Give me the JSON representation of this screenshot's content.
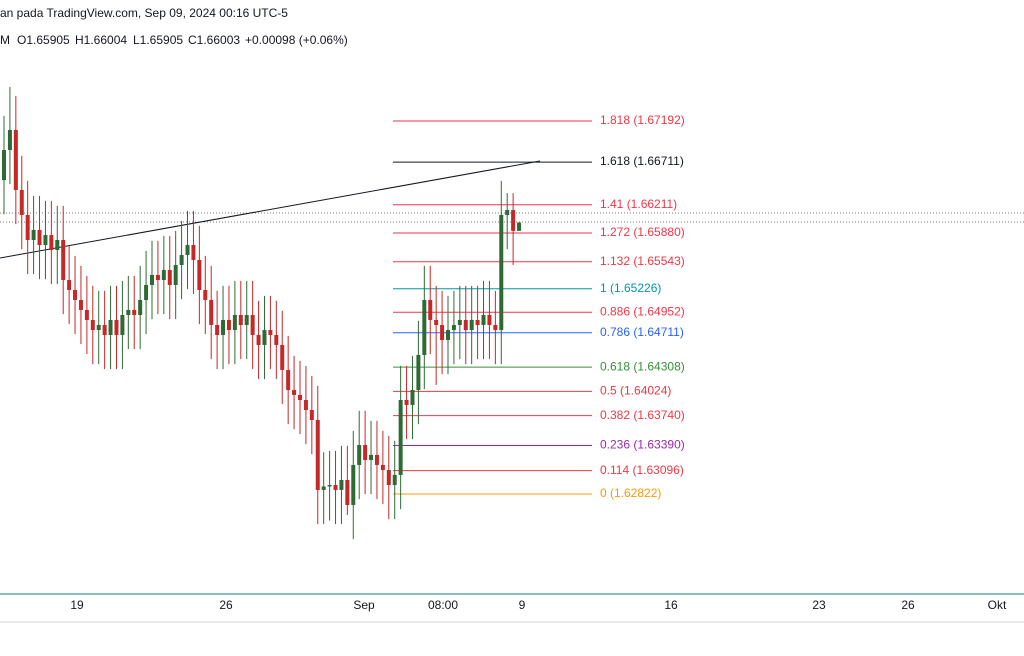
{
  "chart_data": {
    "type": "candlestick",
    "title": "an pada TradingView.com, Sep 09, 2024 00:16 UTC-5",
    "legend": [
      "M",
      "O1.65905",
      "H1.66004",
      "L1.65905",
      "C1.66003",
      "+0.00098 (+0.06%)"
    ],
    "ylim": [
      1.6165,
      1.6861
    ],
    "up_color": "#2e6b34",
    "down_color": "#c62828",
    "open": [
      1.665,
      1.66852,
      1.67087,
      1.66384,
      1.66091,
      1.65798,
      1.65915,
      1.65739,
      1.65856,
      1.65681,
      1.65798,
      1.65329,
      1.65212,
      1.65095,
      1.64978,
      1.64861,
      1.64743,
      1.64802,
      1.64685,
      1.64861,
      1.64685,
      1.64919,
      1.64978,
      1.64919,
      1.65095,
      1.65271,
      1.65388,
      1.65329,
      1.65446,
      1.65271,
      1.65505,
      1.65622,
      1.65739,
      1.65564,
      1.65212,
      1.65095,
      1.64802,
      1.64685,
      1.64861,
      1.64743,
      1.64919,
      1.64802,
      1.64919,
      1.64685,
      1.64568,
      1.64743,
      1.64685,
      1.64568,
      1.64275,
      1.6404,
      1.63982,
      1.63923,
      1.63806,
      1.63689,
      1.62869,
      1.6291,
      1.62927,
      1.62869,
      1.62986,
      1.62693,
      1.63162,
      1.63396,
      1.6322,
      1.63279,
      1.63162,
      1.63103,
      1.62927,
      1.63045,
      1.63923,
      1.63865,
      1.6404,
      1.64451,
      1.65095,
      1.64861,
      1.64802,
      1.64626,
      1.64743,
      1.64802,
      1.64861,
      1.64743,
      1.64861,
      1.64802,
      1.64919,
      1.64802,
      1.64743,
      1.66091,
      1.66149,
      1.65905
    ],
    "high": [
      1.67252,
      1.6759,
      1.67487,
      1.66784,
      1.66491,
      1.66315,
      1.66315,
      1.66256,
      1.66256,
      1.66198,
      1.66198,
      1.65729,
      1.65612,
      1.65495,
      1.65378,
      1.65261,
      1.65202,
      1.65202,
      1.65261,
      1.65261,
      1.65319,
      1.65378,
      1.65378,
      1.65495,
      1.65671,
      1.65788,
      1.65788,
      1.65846,
      1.65846,
      1.65905,
      1.66022,
      1.66139,
      1.66139,
      1.65964,
      1.65612,
      1.65495,
      1.65202,
      1.65261,
      1.65261,
      1.65319,
      1.65319,
      1.65319,
      1.65319,
      1.65085,
      1.65143,
      1.65143,
      1.65085,
      1.64968,
      1.64675,
      1.6444,
      1.64382,
      1.64323,
      1.64206,
      1.64089,
      1.6331,
      1.63327,
      1.63327,
      1.63386,
      1.63386,
      1.63562,
      1.63796,
      1.63796,
      1.63679,
      1.63679,
      1.63562,
      1.63503,
      1.63445,
      1.64323,
      1.64323,
      1.6444,
      1.64851,
      1.65495,
      1.65495,
      1.65261,
      1.65202,
      1.65143,
      1.65202,
      1.65261,
      1.65261,
      1.65261,
      1.65261,
      1.65319,
      1.65319,
      1.65202,
      1.66491,
      1.66349,
      1.66349,
      1.66004
    ],
    "low": [
      1.661,
      1.66452,
      1.65984,
      1.65691,
      1.65398,
      1.65398,
      1.65339,
      1.65339,
      1.65281,
      1.65281,
      1.64929,
      1.64812,
      1.64695,
      1.64578,
      1.64461,
      1.64343,
      1.64343,
      1.64285,
      1.64285,
      1.64285,
      1.64285,
      1.64519,
      1.64519,
      1.64519,
      1.64695,
      1.64871,
      1.64929,
      1.64929,
      1.64871,
      1.64871,
      1.65105,
      1.65222,
      1.65164,
      1.64812,
      1.64695,
      1.64402,
      1.64285,
      1.64285,
      1.64343,
      1.64343,
      1.64402,
      1.64402,
      1.64285,
      1.64168,
      1.64168,
      1.64285,
      1.64168,
      1.63875,
      1.6364,
      1.63582,
      1.63523,
      1.63406,
      1.63289,
      1.62469,
      1.62469,
      1.6251,
      1.62469,
      1.62469,
      1.62576,
      1.62293,
      1.62762,
      1.6282,
      1.6282,
      1.62762,
      1.62703,
      1.62527,
      1.62527,
      1.62645,
      1.63465,
      1.63465,
      1.6364,
      1.64051,
      1.64461,
      1.64099,
      1.64226,
      1.64226,
      1.64343,
      1.64402,
      1.64343,
      1.64343,
      1.64402,
      1.64402,
      1.64402,
      1.64343,
      1.64343,
      1.65691,
      1.65505,
      1.65905
    ],
    "close": [
      1.66852,
      1.67087,
      1.66384,
      1.66091,
      1.65798,
      1.65915,
      1.65739,
      1.65856,
      1.65681,
      1.65798,
      1.65329,
      1.65212,
      1.65095,
      1.64978,
      1.64861,
      1.64743,
      1.64802,
      1.64685,
      1.64861,
      1.64685,
      1.64919,
      1.64978,
      1.64919,
      1.65095,
      1.65271,
      1.65388,
      1.65329,
      1.65446,
      1.65271,
      1.65505,
      1.65622,
      1.65739,
      1.65564,
      1.65212,
      1.65095,
      1.64802,
      1.64685,
      1.64861,
      1.64743,
      1.64919,
      1.64802,
      1.64919,
      1.64685,
      1.64568,
      1.64743,
      1.64685,
      1.64568,
      1.64275,
      1.6404,
      1.63982,
      1.63923,
      1.63806,
      1.63689,
      1.62869,
      1.6291,
      1.62927,
      1.62869,
      1.62986,
      1.62693,
      1.63162,
      1.63396,
      1.6322,
      1.63279,
      1.63162,
      1.63103,
      1.62927,
      1.63045,
      1.63923,
      1.63865,
      1.6404,
      1.64451,
      1.65095,
      1.64861,
      1.64802,
      1.64626,
      1.64743,
      1.64802,
      1.64861,
      1.64743,
      1.64861,
      1.64802,
      1.64919,
      1.64802,
      1.64743,
      1.66091,
      1.66149,
      1.65905,
      1.66003
    ],
    "fib_levels": [
      {
        "label": "1.818 (1.67192)",
        "value": 1.67192,
        "color": "#f23645"
      },
      {
        "label": "1.618 (1.66711)",
        "value": 1.66711,
        "color": "#131722"
      },
      {
        "label": "1.41 (1.66211)",
        "value": 1.66211,
        "color": "#f23645"
      },
      {
        "label": "1.272 (1.65880)",
        "value": 1.6588,
        "color": "#f23645"
      },
      {
        "label": "1.132 (1.65543)",
        "value": 1.65543,
        "color": "#f23645"
      },
      {
        "label": "1 (1.65226)",
        "value": 1.65226,
        "color": "#0097a7"
      },
      {
        "label": "0.886 (1.64952)",
        "value": 1.64952,
        "color": "#f23645"
      },
      {
        "label": "0.786 (1.64711)",
        "value": 1.64711,
        "color": "#2962ff"
      },
      {
        "label": "0.618 (1.64308)",
        "value": 1.64308,
        "color": "#388e3c"
      },
      {
        "label": "0.5 (1.64024)",
        "value": 1.64024,
        "color": "#f23645"
      },
      {
        "label": "0.382 (1.63740)",
        "value": 1.6374,
        "color": "#f23645"
      },
      {
        "label": "0.236 (1.63390)",
        "value": 1.6339,
        "color": "#9c27b0"
      },
      {
        "label": "0.114 (1.63096)",
        "value": 1.63096,
        "color": "#f23645"
      },
      {
        "label": "0 (1.62822)",
        "value": 1.62822,
        "color": "#ff9800"
      }
    ],
    "categories": [
      "19",
      "26",
      "Sep",
      "08:00",
      "9",
      "16",
      "23",
      "26",
      "Okt"
    ]
  }
}
